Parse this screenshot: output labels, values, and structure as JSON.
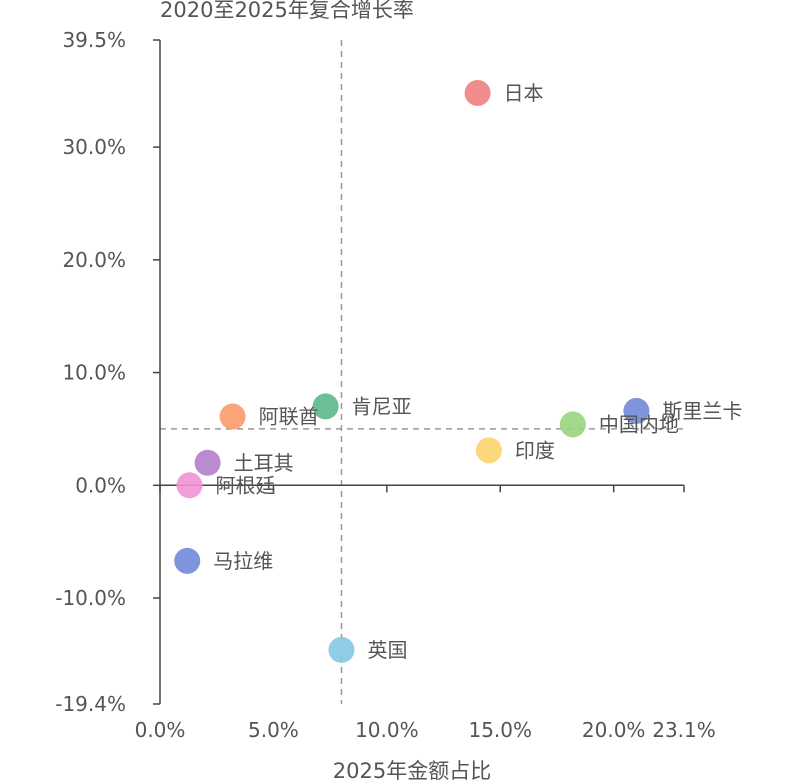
{
  "chart_data": {
    "type": "scatter",
    "title": "",
    "xlabel": "2025年金额占比",
    "ylabel": "2020至2025年复合增长率",
    "xlim": [
      0,
      23.1
    ],
    "ylim": [
      -19.4,
      39.5
    ],
    "x_ticks": [
      0,
      5,
      10,
      15,
      20,
      23.1
    ],
    "x_tick_labels": [
      "0.0%",
      "5.0%",
      "10.0%",
      "15.0%",
      "20.0%",
      "23.1%"
    ],
    "y_ticks": [
      39.5,
      30,
      20,
      10,
      0,
      -10,
      -19.4
    ],
    "y_tick_labels": [
      "39.5%",
      "30.0%",
      "20.0%",
      "10.0%",
      "0.0%",
      "-10.0%",
      "-19.4%"
    ],
    "reference_lines": {
      "x": 8.0,
      "y": 5.0
    },
    "points": [
      {
        "name": "日本",
        "x": 14.0,
        "y": 34.8,
        "color": "#f08080"
      },
      {
        "name": "斯里兰卡",
        "x": 21.0,
        "y": 6.6,
        "color": "#7088d8"
      },
      {
        "name": "中国内地",
        "x": 18.2,
        "y": 5.4,
        "color": "#9ad47e"
      },
      {
        "name": "印度",
        "x": 14.5,
        "y": 3.1,
        "color": "#fdd36e"
      },
      {
        "name": "肯尼亚",
        "x": 7.3,
        "y": 7.0,
        "color": "#5bb88a"
      },
      {
        "name": "阿联酋",
        "x": 3.2,
        "y": 6.1,
        "color": "#fc9a6a"
      },
      {
        "name": "土耳其",
        "x": 2.1,
        "y": 2.0,
        "color": "#b27ec9"
      },
      {
        "name": "阿根廷",
        "x": 1.3,
        "y": 0.0,
        "color": "#f092d6"
      },
      {
        "name": "马拉维",
        "x": 1.2,
        "y": -6.7,
        "color": "#7088d8"
      },
      {
        "name": "英国",
        "x": 8.0,
        "y": -14.6,
        "color": "#86c8e4"
      }
    ]
  }
}
